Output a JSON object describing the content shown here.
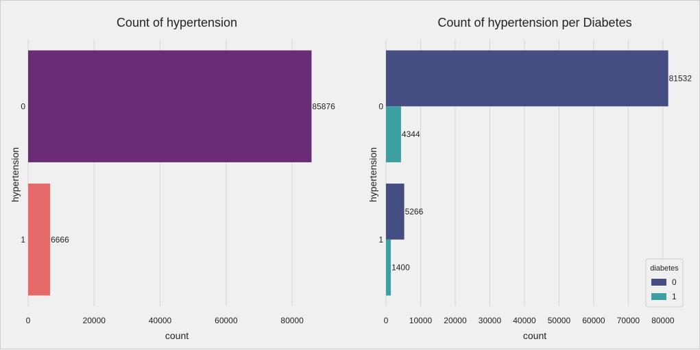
{
  "chart_data": [
    {
      "type": "bar",
      "orientation": "horizontal",
      "title": "Count of hypertension",
      "xlabel": "count",
      "ylabel": "hypertension",
      "categories": [
        "0",
        "1"
      ],
      "values": [
        85876,
        6666
      ],
      "data_labels": [
        "85876",
        "6666"
      ],
      "colors": [
        "#6a2c75",
        "#e46a6a"
      ],
      "xlim": [
        0,
        90000
      ],
      "xticks": [
        0,
        20000,
        40000,
        60000,
        80000
      ],
      "xtick_labels": [
        "0",
        "20000",
        "40000",
        "60000",
        "80000"
      ],
      "grid": true
    },
    {
      "type": "bar",
      "orientation": "horizontal",
      "title": "Count of hypertension per Diabetes",
      "xlabel": "count",
      "ylabel": "hypertension",
      "categories": [
        "0",
        "1"
      ],
      "series": [
        {
          "name": "0",
          "values": [
            81532,
            5266
          ],
          "data_labels": [
            "81532",
            "5266"
          ],
          "color": "#454e82"
        },
        {
          "name": "1",
          "values": [
            4344,
            1400
          ],
          "data_labels": [
            "4344",
            "1400"
          ],
          "color": "#3c9fa0"
        }
      ],
      "xlim": [
        0,
        83000
      ],
      "xticks": [
        0,
        10000,
        20000,
        30000,
        40000,
        50000,
        60000,
        70000,
        80000
      ],
      "xtick_labels": [
        "0",
        "10000",
        "20000",
        "30000",
        "40000",
        "50000",
        "60000",
        "70000",
        "80000"
      ],
      "grid": true,
      "legend": {
        "title": "diabetes",
        "placement": "bottom-right"
      }
    }
  ]
}
